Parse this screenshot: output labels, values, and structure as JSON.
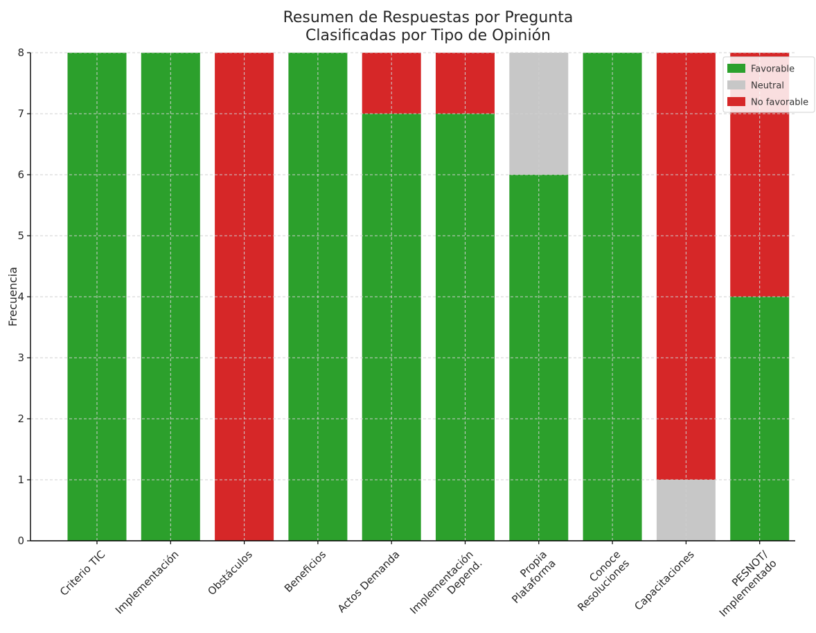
{
  "chart_data": {
    "type": "bar",
    "stacked": true,
    "title": [
      "Resumen de Respuestas por Pregunta",
      "Clasificadas por Tipo de Opinión"
    ],
    "xlabel": "",
    "ylabel": "Frecuencia",
    "ylim": [
      0,
      8
    ],
    "yticks": [
      0,
      1,
      2,
      3,
      4,
      5,
      6,
      7,
      8
    ],
    "grid": true,
    "legend_position": "top-right",
    "categories": [
      [
        "Criterio TIC"
      ],
      [
        "Implementación"
      ],
      [
        "Obstáculos"
      ],
      [
        "Beneficios"
      ],
      [
        "Actos Demanda"
      ],
      [
        "Implementación",
        "Depend."
      ],
      [
        "Propia",
        "Plataforma"
      ],
      [
        "Conoce",
        "Resoluciones"
      ],
      [
        "Capacitaciones"
      ],
      [
        "PESNOT/",
        "Implementado"
      ]
    ],
    "series": [
      {
        "name": "Favorable",
        "color": "#2ca02c",
        "values": [
          8,
          8,
          0,
          8,
          7,
          7,
          6,
          8,
          0,
          4
        ]
      },
      {
        "name": "Neutral",
        "color": "#c7c7c7",
        "values": [
          0,
          0,
          0,
          0,
          0,
          0,
          2,
          0,
          1,
          0
        ]
      },
      {
        "name": "No favorable",
        "color": "#d62728",
        "values": [
          0,
          0,
          8,
          0,
          1,
          1,
          0,
          0,
          7,
          4
        ]
      }
    ]
  }
}
